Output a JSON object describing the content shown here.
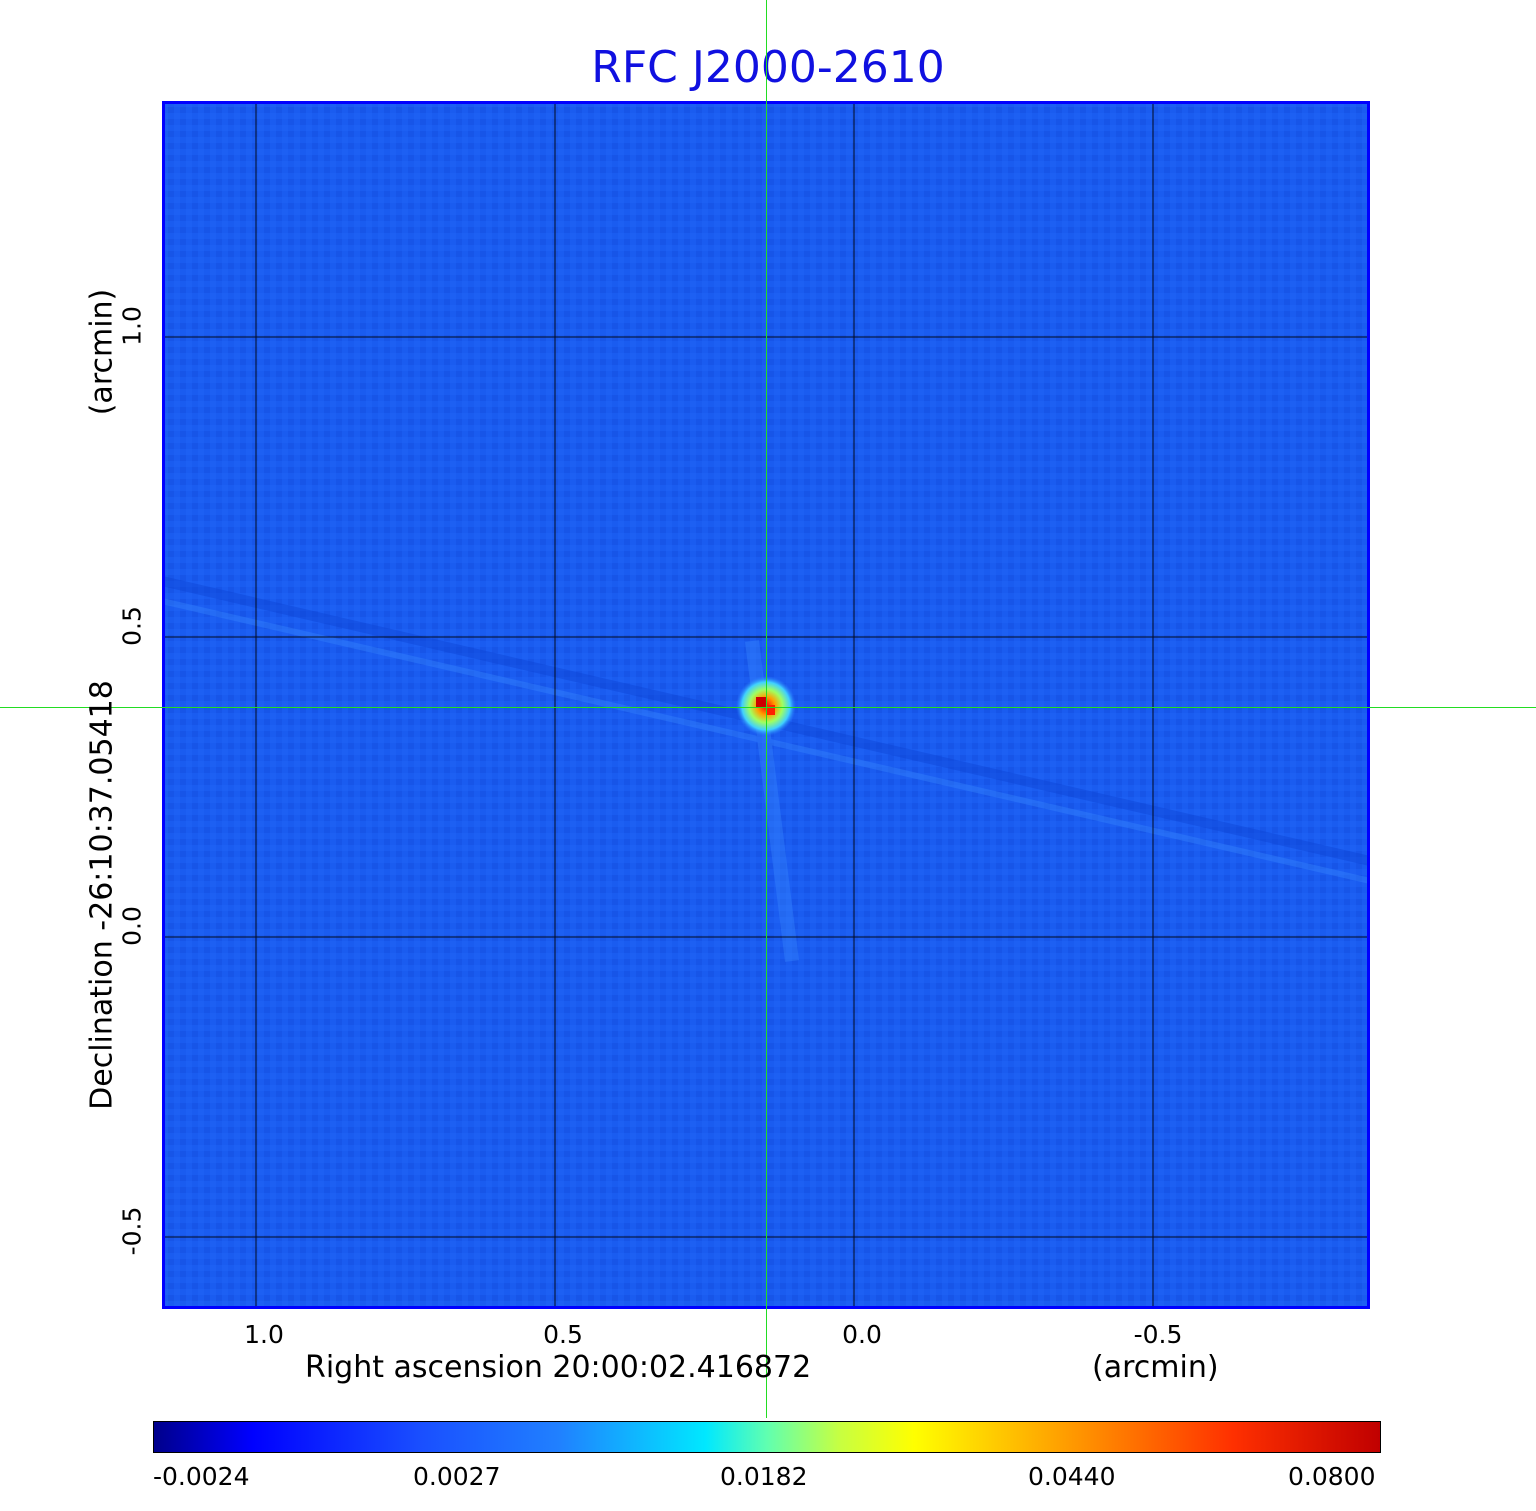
{
  "title": "RFC J2000-2610",
  "x_axis": {
    "label": "Right ascension  20:00:02.416872",
    "unit": "(arcmin)",
    "ticks": [
      "1.0",
      "0.5",
      "0.0",
      "-0.5"
    ]
  },
  "y_axis": {
    "label": "Declination  -26:10:37.05418",
    "unit": "(arcmin)",
    "ticks": [
      "1.0",
      "0.5",
      "0.0",
      "-0.5"
    ]
  },
  "colorbar": {
    "ticks": [
      "-0.0024",
      "0.0027",
      "0.0182",
      "0.0440",
      "0.0800"
    ]
  },
  "colors": {
    "title": "#1010e0",
    "background_field": "#1a5cf0",
    "crosshair": "#22dd22",
    "frame": "#0000ff"
  }
}
